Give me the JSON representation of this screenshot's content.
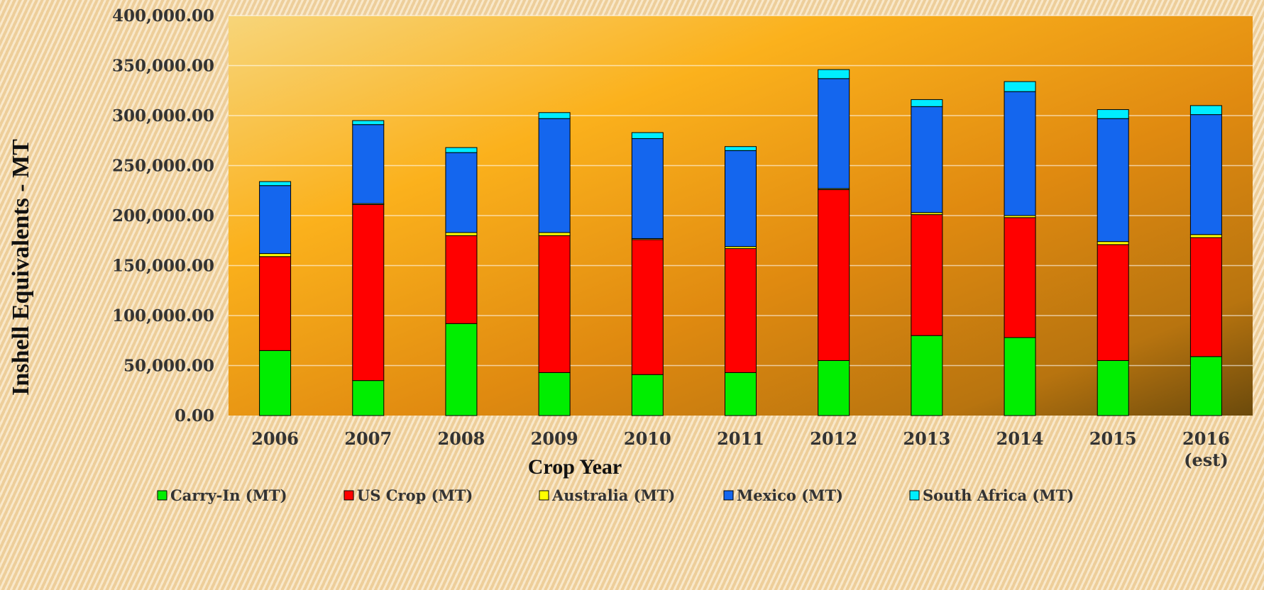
{
  "chart_data": {
    "type": "bar",
    "stacked": true,
    "title": "",
    "xlabel": "Crop Year",
    "ylabel": "Inshell Equivalents - MT",
    "ylim": [
      0,
      400000
    ],
    "y_ticks": [
      "0.00",
      "50,000.00",
      "100,000.00",
      "150,000.00",
      "200,000.00",
      "250,000.00",
      "300,000.00",
      "350,000.00",
      "400,000.00"
    ],
    "y_tick_values": [
      0,
      50000,
      100000,
      150000,
      200000,
      250000,
      300000,
      350000,
      400000
    ],
    "categories": [
      "2006",
      "2007",
      "2008",
      "2009",
      "2010",
      "2011",
      "2012",
      "2013",
      "2014",
      "2015",
      "2016\n(est)"
    ],
    "grid": true,
    "legend_position": "bottom",
    "series": [
      {
        "name": "Carry-In (MT)",
        "color": "#00ee00",
        "values": [
          65000,
          35000,
          92000,
          43000,
          41000,
          43000,
          55000,
          80000,
          78000,
          55000,
          59000
        ]
      },
      {
        "name": "US Crop (MT)",
        "color": "#ff0000",
        "values": [
          94000,
          176000,
          88000,
          137000,
          135000,
          124000,
          171000,
          121000,
          120000,
          116000,
          119000
        ]
      },
      {
        "name": "Australia (MT)",
        "color": "#ffff00",
        "values": [
          3000,
          1000,
          3000,
          3000,
          1000,
          2000,
          1000,
          2000,
          2000,
          3000,
          3000
        ]
      },
      {
        "name": "Mexico (MT)",
        "color": "#1466ee",
        "values": [
          68000,
          79000,
          80000,
          114000,
          100000,
          96000,
          110000,
          106000,
          124000,
          123000,
          120000
        ]
      },
      {
        "name": "South Africa (MT)",
        "color": "#00eeff",
        "values": [
          4000,
          4000,
          5000,
          6000,
          6000,
          4000,
          9000,
          7000,
          10000,
          9000,
          9000
        ]
      }
    ]
  }
}
